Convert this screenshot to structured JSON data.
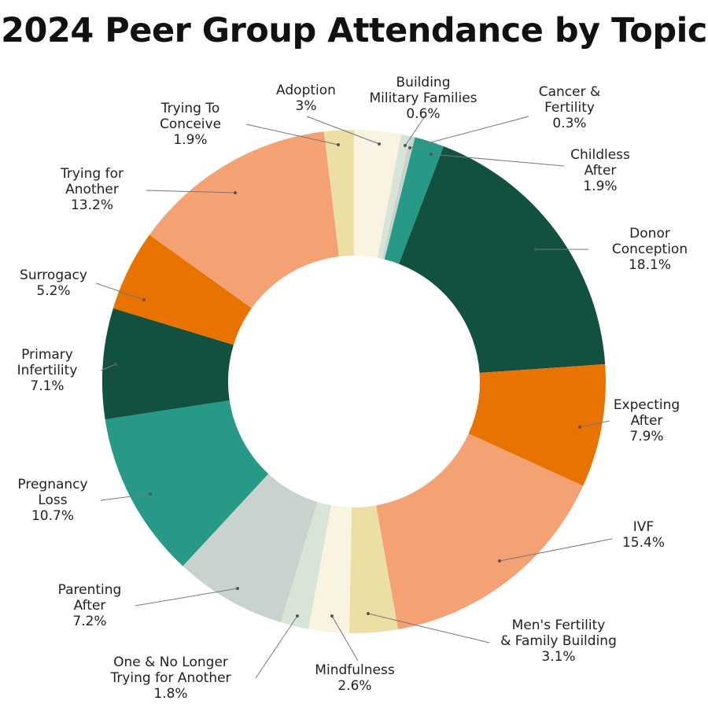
{
  "chart_data": {
    "type": "donut",
    "title": "2024 Peer Group Attendance by Topic",
    "categories": [
      "Adoption",
      "Building\nMilitary Families",
      "Cancer &\nFertility",
      "Childless\nAfter",
      "Donor\nConception",
      "Expecting\nAfter",
      "IVF",
      "Men's Fertility\n& Family Building",
      "Mindfulness",
      "One & No Longer\nTrying for Another",
      "Parenting\nAfter",
      "Pregnancy\nLoss",
      "Primary\nInfertility",
      "Surrogacy",
      "Trying for\nAnother",
      "Trying To\nConceive"
    ],
    "values": [
      3,
      0.6,
      0.3,
      1.9,
      18.1,
      7.9,
      15.4,
      3.1,
      2.6,
      1.8,
      7.2,
      10.7,
      7.1,
      5.2,
      13.2,
      1.9
    ],
    "value_labels": [
      "3%",
      "0.6%",
      "0.3%",
      "1.9%",
      "18.1%",
      "7.9%",
      "15.4%",
      "3.1%",
      "2.6%",
      "1.8%",
      "7.2%",
      "10.7%",
      "7.1%",
      "5.2%",
      "13.2%",
      "1.9%"
    ],
    "colors": [
      "#f8f4e1",
      "#d9e4d8",
      "#c8d3cd",
      "#279a87",
      "#12513f",
      "#e87300",
      "#f4a274",
      "#ecdfa6",
      "#f8f4e1",
      "#d9e4d8",
      "#c8d3cd",
      "#279a87",
      "#12513f",
      "#e87300",
      "#f4a274",
      "#ecdfa6"
    ]
  }
}
